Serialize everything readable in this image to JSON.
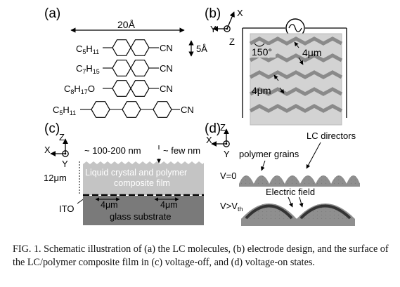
{
  "panels": {
    "a": {
      "label": "(a)",
      "length_label": "20Å",
      "width_label": "5Å",
      "molecules": [
        {
          "left_group": "C",
          "left_sub": "5",
          "left_h": "H",
          "left_hsub": "11",
          "tail": "",
          "right_group": "CN"
        },
        {
          "left_group": "C",
          "left_sub": "7",
          "left_h": "H",
          "left_hsub": "15",
          "tail": "",
          "right_group": "CN"
        },
        {
          "left_group": "C",
          "left_sub": "8",
          "left_h": "H",
          "left_hsub": "17",
          "tail": "O",
          "right_group": "CN"
        },
        {
          "left_group": "C",
          "left_sub": "5",
          "left_h": "H",
          "left_hsub": "11",
          "tail": "",
          "right_group": "CN"
        }
      ]
    },
    "b": {
      "label": "(b)",
      "axis_x": "X",
      "axis_y": "Y",
      "axis_z": "Z",
      "angle_label": "150°",
      "spacing_label_1": "4μm",
      "spacing_label_2": "4μm"
    },
    "c": {
      "label": "(c)",
      "axis_x": "X",
      "axis_y": "Y",
      "axis_z": "Z",
      "roughness_label": "~ 100-200 nm",
      "height_label": "~ few nm",
      "thickness_label": "12μm",
      "film_label_1": "Liquid crystal and polymer",
      "film_label_2": "composite film",
      "ito_label": "ITO",
      "gap_label_1": "4μm",
      "gap_label_2": "4μm",
      "substrate_label": "glass substrate"
    },
    "d": {
      "label": "(d)",
      "axis_x": "X",
      "axis_y": "Y",
      "axis_z": "Z",
      "directors_label": "LC directors",
      "grains_label": "polymer grains",
      "voff_label": "V=0",
      "field_label": "Electric field",
      "von_label": "V>V",
      "von_sub": "th"
    }
  },
  "caption": "FIG. 1. Schematic illustration of (a) the LC molecules, (b) electrode design, and the surface of the LC/polymer composite film in (c) voltage-off, and (d) voltage-on states."
}
